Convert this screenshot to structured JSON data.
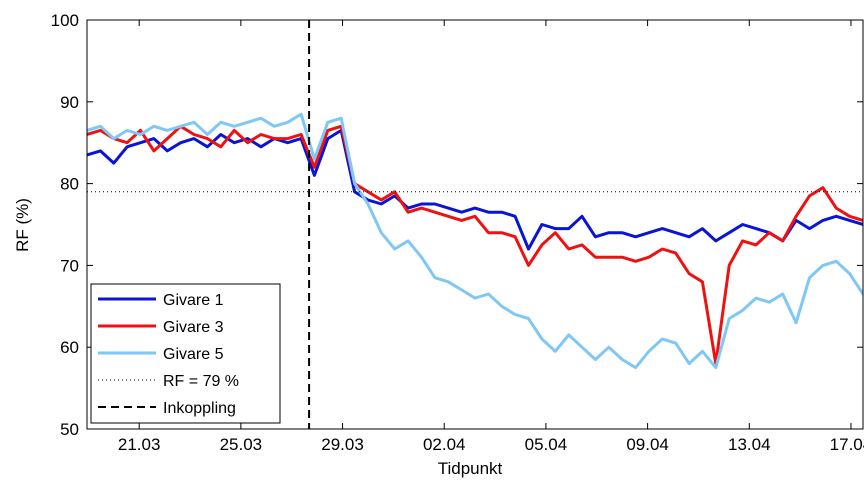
{
  "chart_data": {
    "type": "line",
    "title": "",
    "xlabel": "Tidpunkt",
    "ylabel": "RF (%)",
    "x_tick_labels": [
      "21.03",
      "25.03",
      "29.03",
      "02.04",
      "05.04",
      "09.04",
      "13.04",
      "17.04"
    ],
    "y_ticks": [
      50,
      60,
      70,
      80,
      90,
      100
    ],
    "ylim": [
      50,
      100
    ],
    "x_axis_unit": "days",
    "series": [
      {
        "name": "Givare 1",
        "color": "#0a14d4",
        "x": [
          0.0,
          0.5,
          1.0,
          1.5,
          2.0,
          2.5,
          3.0,
          3.5,
          4.0,
          4.5,
          5.0,
          5.5,
          6.0,
          6.5,
          7.0,
          7.5,
          8.0,
          8.5,
          9.0,
          9.5,
          10.0,
          10.5,
          11.0,
          11.5,
          12.0,
          12.5,
          13.0,
          13.5,
          14.0,
          14.5,
          15.0,
          15.5,
          16.0,
          16.5,
          17.0,
          17.5,
          18.0,
          18.5,
          19.0,
          19.5,
          20.0,
          20.5,
          21.0,
          21.5,
          22.0,
          22.5,
          23.0,
          23.5,
          24.0,
          24.5,
          25.0,
          25.5,
          26.0,
          26.5,
          27.0,
          27.5,
          28.0,
          28.5,
          29.0
        ],
        "values": [
          83.5,
          84.0,
          82.5,
          84.5,
          85.0,
          85.5,
          84.0,
          85.0,
          85.5,
          84.5,
          86.0,
          85.0,
          85.5,
          84.5,
          85.5,
          85.0,
          85.5,
          81.0,
          85.5,
          86.5,
          79.0,
          78.0,
          77.5,
          78.5,
          77.0,
          77.5,
          77.5,
          77.0,
          76.5,
          77.0,
          76.5,
          76.5,
          76.0,
          72.0,
          75.0,
          74.5,
          74.5,
          76.0,
          73.5,
          74.0,
          74.0,
          73.5,
          74.0,
          74.5,
          74.0,
          73.5,
          74.5,
          73.0,
          74.0,
          75.0,
          74.5,
          74.0,
          73.0,
          75.5,
          74.5,
          75.5,
          76.0,
          75.5,
          75.0
        ]
      },
      {
        "name": "Givare 3",
        "color": "#ee1111",
        "x": [
          0.0,
          0.5,
          1.0,
          1.5,
          2.0,
          2.5,
          3.0,
          3.5,
          4.0,
          4.5,
          5.0,
          5.5,
          6.0,
          6.5,
          7.0,
          7.5,
          8.0,
          8.5,
          9.0,
          9.5,
          10.0,
          10.5,
          11.0,
          11.5,
          12.0,
          12.5,
          13.0,
          13.5,
          14.0,
          14.5,
          15.0,
          15.5,
          16.0,
          16.5,
          17.0,
          17.5,
          18.0,
          18.5,
          19.0,
          19.5,
          20.0,
          20.5,
          21.0,
          21.5,
          22.0,
          22.5,
          23.0,
          23.5,
          24.0,
          24.5,
          25.0,
          25.5,
          26.0,
          26.5,
          27.0,
          27.5,
          28.0,
          28.5,
          29.0
        ],
        "values": [
          86.0,
          86.5,
          85.5,
          85.0,
          86.5,
          84.0,
          85.5,
          87.0,
          86.0,
          85.5,
          84.5,
          86.5,
          85.0,
          86.0,
          85.5,
          85.5,
          86.0,
          82.0,
          86.5,
          87.0,
          80.0,
          79.0,
          78.0,
          79.0,
          76.5,
          77.0,
          76.5,
          76.0,
          75.5,
          76.0,
          74.0,
          74.0,
          73.5,
          70.0,
          72.5,
          74.0,
          72.0,
          72.5,
          71.0,
          71.0,
          71.0,
          70.5,
          71.0,
          72.0,
          71.5,
          69.0,
          68.0,
          58.0,
          70.0,
          73.0,
          72.5,
          74.0,
          73.0,
          76.0,
          78.5,
          79.5,
          77.0,
          76.0,
          75.5
        ]
      },
      {
        "name": "Givare 5",
        "color": "#7fc7f5",
        "x": [
          0.0,
          0.5,
          1.0,
          1.5,
          2.0,
          2.5,
          3.0,
          3.5,
          4.0,
          4.5,
          5.0,
          5.5,
          6.0,
          6.5,
          7.0,
          7.5,
          8.0,
          8.5,
          9.0,
          9.5,
          10.0,
          10.5,
          11.0,
          11.5,
          12.0,
          12.5,
          13.0,
          13.5,
          14.0,
          14.5,
          15.0,
          15.5,
          16.0,
          16.5,
          17.0,
          17.5,
          18.0,
          18.5,
          19.0,
          19.5,
          20.0,
          20.5,
          21.0,
          21.5,
          22.0,
          22.5,
          23.0,
          23.5,
          24.0,
          24.5,
          25.0,
          25.5,
          26.0,
          26.5,
          27.0,
          27.5,
          28.0,
          28.5,
          29.0
        ],
        "values": [
          86.5,
          87.0,
          85.5,
          86.5,
          86.0,
          87.0,
          86.5,
          87.0,
          87.5,
          86.0,
          87.5,
          87.0,
          87.5,
          88.0,
          87.0,
          87.5,
          88.5,
          83.0,
          87.5,
          88.0,
          80.0,
          77.5,
          74.0,
          72.0,
          73.0,
          71.0,
          68.5,
          68.0,
          67.0,
          66.0,
          66.5,
          65.0,
          64.0,
          63.5,
          61.0,
          59.5,
          61.5,
          60.0,
          58.5,
          60.0,
          58.5,
          57.5,
          59.5,
          61.0,
          60.5,
          58.0,
          59.5,
          57.5,
          63.5,
          64.5,
          66.0,
          65.5,
          66.5,
          63.0,
          68.5,
          70.0,
          70.5,
          69.0,
          66.5
        ]
      }
    ],
    "reference_line": {
      "label": "RF = 79 %",
      "value": 79,
      "style": "dotted",
      "color": "#000000"
    },
    "event_line": {
      "label": "Inkoppling",
      "x": 8.3,
      "style": "dashed",
      "color": "#000000"
    },
    "legend_position": "bottom-left",
    "legend": [
      "Givare 1",
      "Givare 3",
      "Givare 5",
      "RF = 79 %",
      "Inkoppling"
    ],
    "grid": false
  }
}
